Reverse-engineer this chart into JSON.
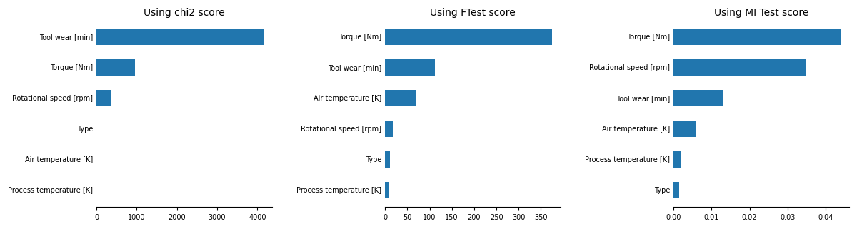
{
  "charts": [
    {
      "title": "Using chi2 score",
      "categories": [
        "Tool wear [min]",
        "Torque [Nm]",
        "Rotational speed [rpm]",
        "Type",
        "Air temperature [K]",
        "Process temperature [K]"
      ],
      "values": [
        4150,
        950,
        380,
        0,
        0,
        0
      ]
    },
    {
      "title": "Using FTest score",
      "categories": [
        "Torque [Nm]",
        "Tool wear [min]",
        "Air temperature [K]",
        "Rotational speed [rpm]",
        "Type",
        "Process temperature [K]"
      ],
      "values": [
        375,
        112,
        70,
        17,
        11,
        9
      ]
    },
    {
      "title": "Using MI Test score",
      "categories": [
        "Torque [Nm]",
        "Rotational speed [rpm]",
        "Tool wear [min]",
        "Air temperature [K]",
        "Process temperature [K]",
        "Type"
      ],
      "values": [
        0.044,
        0.035,
        0.013,
        0.006,
        0.002,
        0.0015
      ]
    }
  ],
  "bar_color": "#2176AE",
  "figsize": [
    12.0,
    3.21
  ],
  "dpi": 100,
  "title_fontsize": 10,
  "tick_fontsize": 7,
  "bar_height": 0.55
}
